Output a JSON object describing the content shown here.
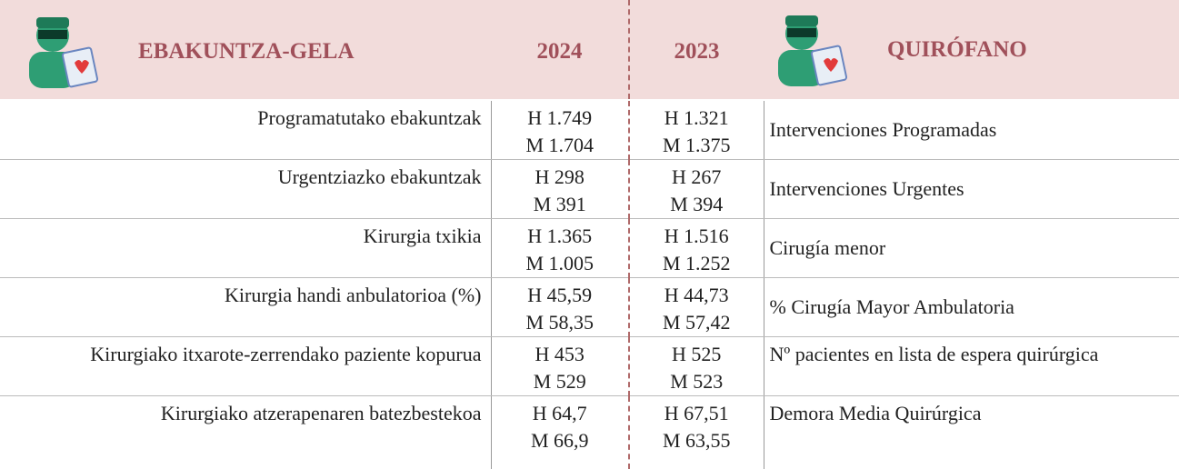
{
  "header": {
    "title_eu": "EBAKUNTZA-GELA",
    "year_1": "2024",
    "year_2": "2023",
    "title_es": "QUIRÓFANO"
  },
  "rows": [
    {
      "label_eu": "Programatutako ebakuntzak",
      "y2024": [
        "H 1.749",
        "M 1.704"
      ],
      "y2023": [
        "H 1.321",
        "M 1.375"
      ],
      "label_es": "Intervenciones Programadas"
    },
    {
      "label_eu": "Urgentziazko ebakuntzak",
      "y2024": [
        "H 298",
        "M 391"
      ],
      "y2023": [
        "H 267",
        "M 394"
      ],
      "label_es": "Intervenciones Urgentes"
    },
    {
      "label_eu": "Kirurgia txikia",
      "y2024": [
        "H 1.365",
        "M 1.005"
      ],
      "y2023": [
        "H 1.516",
        "M 1.252"
      ],
      "label_es": "Cirugía menor"
    },
    {
      "label_eu": "Kirurgia handi anbulatorioa (%)",
      "y2024": [
        "H 45,59",
        "M 58,35"
      ],
      "y2023": [
        "H 44,73",
        "M 57,42"
      ],
      "label_es": "% Cirugía Mayor Ambulatoria"
    },
    {
      "label_eu": "Kirurgiako itxarote-zerrendako paziente kopurua",
      "y2024": [
        "H 453",
        "M 529"
      ],
      "y2023": [
        "H 525",
        "M 523"
      ],
      "label_es": "Nº pacientes en lista de espera quirúrgica"
    },
    {
      "label_eu": "Kirurgiako atzerapenaren batezbestekoa",
      "y2024": [
        "H 64,7",
        "M 66,9"
      ],
      "y2023": [
        "H 67,51",
        "M 63,55"
      ],
      "label_es": "Demora Media Quirúrgica"
    }
  ]
}
